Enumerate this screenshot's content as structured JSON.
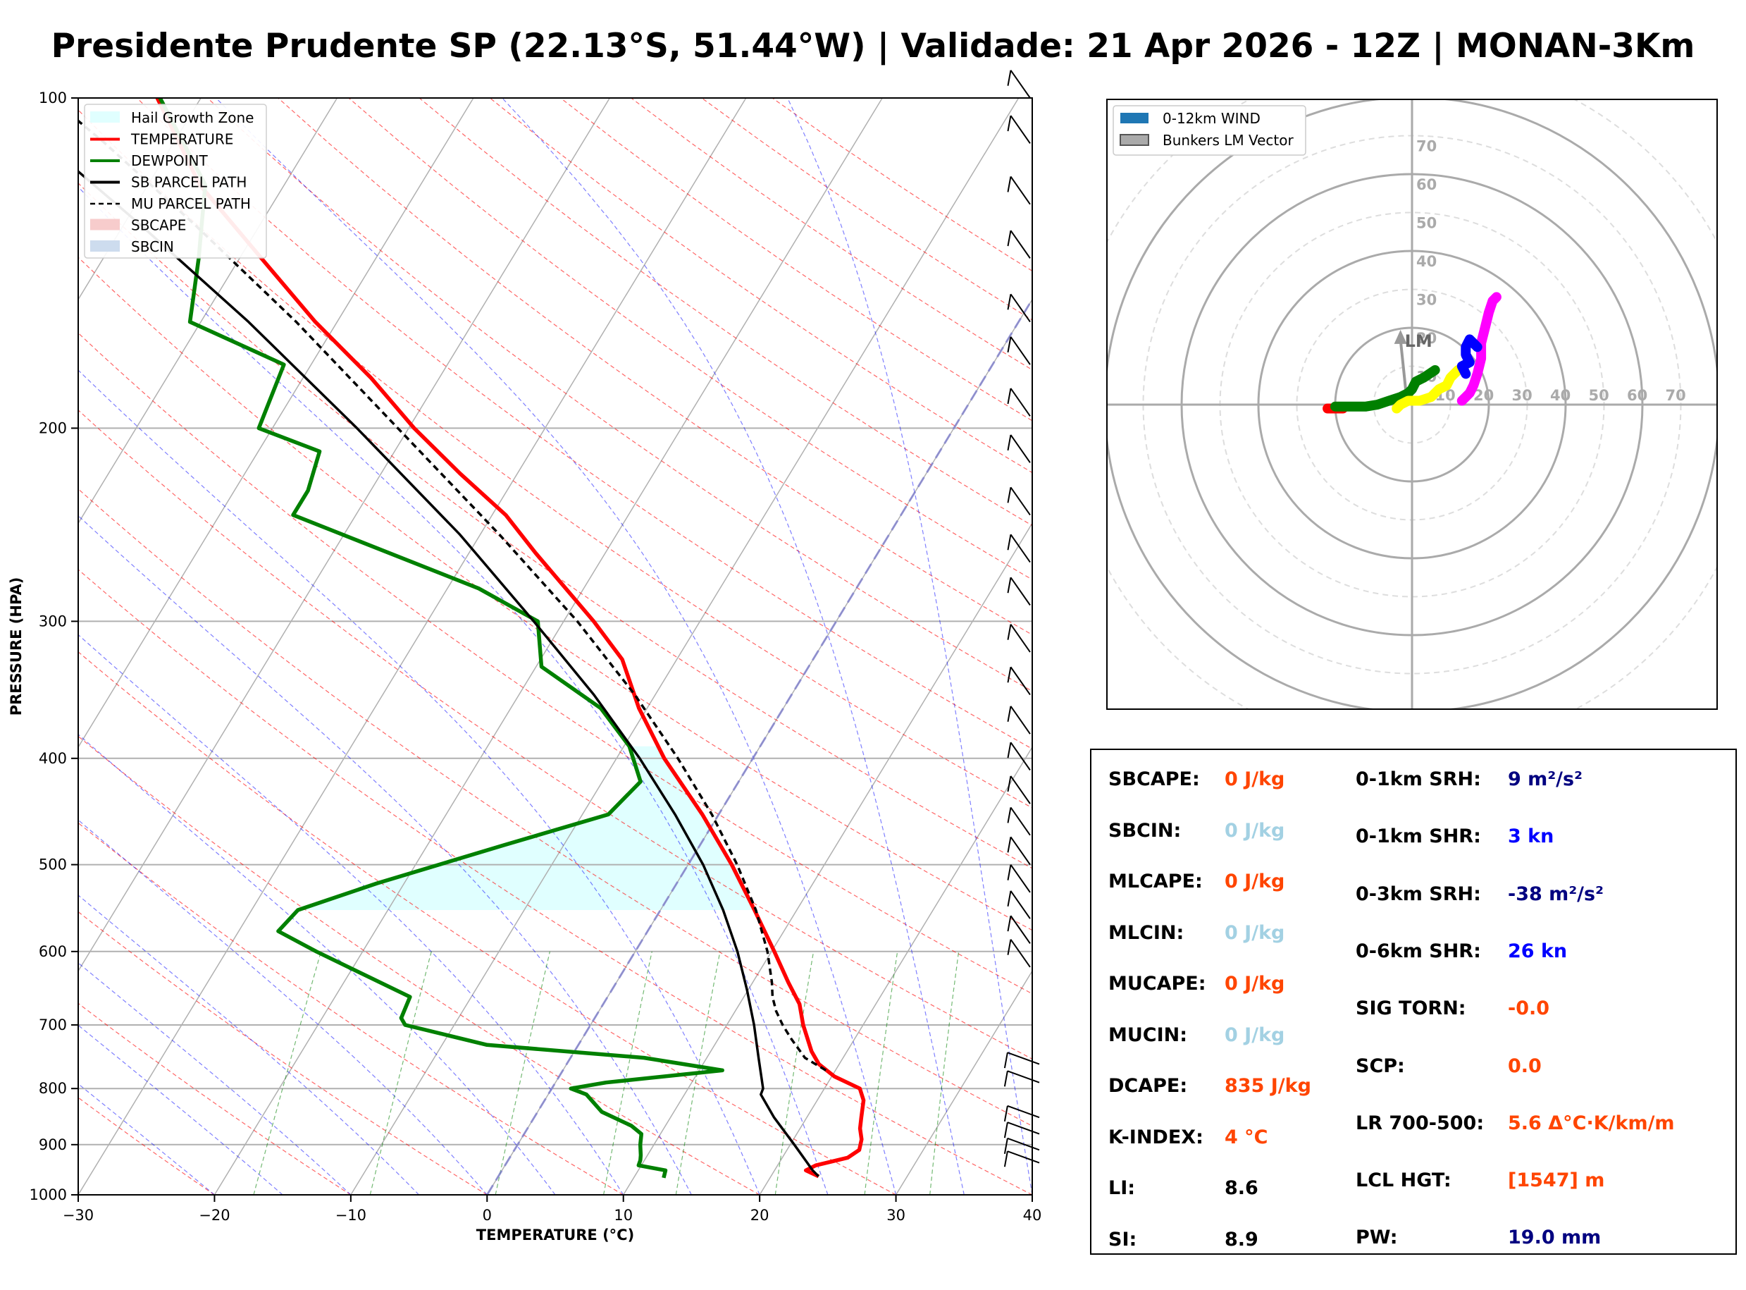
{
  "title": "Presidente Prudente SP (22.13°S, 51.44°W) | Validade: 21 Apr 2026 - 12Z | MONAN-3Km",
  "chart_data": [
    {
      "type": "line",
      "subtype": "skew-t log-p sounding",
      "xlabel": "TEMPERATURE (°C)",
      "ylabel": "PRESSURE (HPA)",
      "x_ticks": [
        -30,
        -20,
        -10,
        0,
        10,
        20,
        30,
        40
      ],
      "x_tick_labels": [
        "−30",
        "−20",
        "−10",
        "0",
        "10",
        "20",
        "30",
        "40"
      ],
      "y_ticks": [
        100,
        200,
        300,
        400,
        500,
        600,
        700,
        800,
        900,
        1000
      ],
      "xlim": [
        -30,
        40
      ],
      "ylim": [
        1000,
        100
      ],
      "y_scale": "log",
      "grid": true,
      "legend_position": "top-left",
      "legend": [
        {
          "label": "Hail Growth Zone",
          "style": "fill",
          "color": "#e0ffff"
        },
        {
          "label": "TEMPERATURE",
          "style": "line",
          "color": "#ff0000"
        },
        {
          "label": "DEWPOINT",
          "style": "line",
          "color": "#008000"
        },
        {
          "label": "SB PARCEL PATH",
          "style": "line",
          "color": "#000000"
        },
        {
          "label": "MU PARCEL PATH",
          "style": "dashed",
          "color": "#000000"
        },
        {
          "label": "SBCAPE",
          "style": "fill",
          "color": "#f7cccc"
        },
        {
          "label": "SBCIN",
          "style": "fill",
          "color": "#cddcee"
        }
      ],
      "hail_growth_zone": {
        "p_bottom": 550,
        "p_top": 390
      },
      "series": [
        {
          "name": "TEMPERATURE",
          "color": "#ff0000",
          "points": [
            [
              962,
              23.5
            ],
            [
              950,
              22.3
            ],
            [
              940,
              22.8
            ],
            [
              925,
              24.8
            ],
            [
              910,
              25.3
            ],
            [
              890,
              25.0
            ],
            [
              870,
              24.4
            ],
            [
              850,
              24.0
            ],
            [
              820,
              23.4
            ],
            [
              800,
              22.6
            ],
            [
              780,
              20.2
            ],
            [
              760,
              18.5
            ],
            [
              740,
              17.4
            ],
            [
              700,
              15.6
            ],
            [
              670,
              14.4
            ],
            [
              640,
              12.6
            ],
            [
              600,
              10.2
            ],
            [
              550,
              6.9
            ],
            [
              500,
              3.2
            ],
            [
              450,
              -1.2
            ],
            [
              400,
              -6.5
            ],
            [
              360,
              -10.6
            ],
            [
              325,
              -14.0
            ],
            [
              300,
              -17.8
            ],
            [
              260,
              -25.1
            ],
            [
              240,
              -29.0
            ],
            [
              220,
              -34.2
            ],
            [
              200,
              -39.6
            ],
            [
              180,
              -45.0
            ],
            [
              160,
              -51.6
            ],
            [
              140,
              -58.4
            ],
            [
              120,
              -66.2
            ],
            [
              100,
              -73.2
            ]
          ]
        },
        {
          "name": "DEWPOINT",
          "color": "#008000",
          "points": [
            [
              965,
              12.2
            ],
            [
              950,
              12.0
            ],
            [
              940,
              9.8
            ],
            [
              930,
              9.7
            ],
            [
              920,
              9.5
            ],
            [
              900,
              9.0
            ],
            [
              880,
              8.6
            ],
            [
              865,
              7.5
            ],
            [
              840,
              4.7
            ],
            [
              810,
              2.8
            ],
            [
              800,
              1.4
            ],
            [
              790,
              3.7
            ],
            [
              770,
              11.7
            ],
            [
              750,
              5.4
            ],
            [
              730,
              -6.7
            ],
            [
              700,
              -13.6
            ],
            [
              690,
              -14.2
            ],
            [
              660,
              -14.5
            ],
            [
              600,
              -23.4
            ],
            [
              575,
              -27.1
            ],
            [
              550,
              -26.6
            ],
            [
              520,
              -22.0
            ],
            [
              480,
              -14.4
            ],
            [
              450,
              -8.1
            ],
            [
              420,
              -7.2
            ],
            [
              390,
              -9.6
            ],
            [
              360,
              -13.4
            ],
            [
              330,
              -19.6
            ],
            [
              300,
              -21.9
            ],
            [
              280,
              -27.7
            ],
            [
              240,
              -44.6
            ],
            [
              228,
              -44.6
            ],
            [
              210,
              -45.5
            ],
            [
              200,
              -51.0
            ],
            [
              175,
              -52.0
            ],
            [
              160,
              -60.8
            ],
            [
              140,
              -63.0
            ],
            [
              120,
              -65.8
            ],
            [
              100,
              -73.0
            ]
          ]
        },
        {
          "name": "SB PARCEL PATH",
          "color": "#000000",
          "points": [
            [
              962,
              23.5
            ],
            [
              950,
              22.8
            ],
            [
              900,
              20.3
            ],
            [
              850,
              17.6
            ],
            [
              810,
              15.6
            ],
            [
              800,
              15.5
            ],
            [
              750,
              13.8
            ],
            [
              700,
              12.0
            ],
            [
              650,
              9.9
            ],
            [
              600,
              7.5
            ],
            [
              550,
              4.6
            ],
            [
              500,
              1.1
            ],
            [
              450,
              -3.2
            ],
            [
              400,
              -8.3
            ],
            [
              350,
              -14.5
            ],
            [
              300,
              -22.2
            ],
            [
              250,
              -31.5
            ],
            [
              200,
              -43.8
            ],
            [
              160,
              -56.5
            ],
            [
              130,
              -69.0
            ],
            [
              100,
              -85.3
            ]
          ]
        },
        {
          "name": "MU PARCEL PATH",
          "color": "#000000",
          "dash": true,
          "points": [
            [
              770,
              19.3
            ],
            [
              750,
              17.2
            ],
            [
              720,
              15.3
            ],
            [
              700,
              14.1
            ],
            [
              680,
              13.0
            ],
            [
              660,
              12.1
            ],
            [
              640,
              11.4
            ],
            [
              600,
              9.7
            ],
            [
              550,
              7.0
            ],
            [
              500,
              3.6
            ],
            [
              450,
              -0.5
            ],
            [
              400,
              -5.5
            ],
            [
              350,
              -11.5
            ],
            [
              300,
              -19.0
            ],
            [
              250,
              -28.6
            ],
            [
              200,
              -40.8
            ],
            [
              160,
              -53.0
            ],
            [
              130,
              -65.0
            ],
            [
              110,
              -75.0
            ],
            [
              100,
              -81.0
            ]
          ]
        }
      ]
    },
    {
      "type": "line",
      "subtype": "hodograph",
      "legend": [
        {
          "label": "0-12km WIND",
          "color": "#1f77b4"
        },
        {
          "label": "Bunkers LM Vector",
          "color": "#aaaaaa"
        }
      ],
      "legend_position": "top-left",
      "ring_labels": [
        "10",
        "20",
        "30",
        "40",
        "50",
        "60",
        "70"
      ],
      "ring_values": [
        10,
        20,
        30,
        40,
        50,
        60,
        70
      ],
      "lm_label": "LM",
      "lm_vector": {
        "u": -3,
        "v": 18
      },
      "series": [
        {
          "name": "segment-1",
          "color": "#ff0000",
          "points": [
            [
              -22,
              -1
            ],
            [
              -20,
              -1
            ],
            [
              -18,
              -1
            ]
          ]
        },
        {
          "name": "segment-2",
          "color": "#008000",
          "points": [
            [
              -20,
              -0.5
            ],
            [
              -15,
              -0.5
            ],
            [
              -12,
              -0.5
            ],
            [
              -9,
              0
            ],
            [
              -6,
              1
            ],
            [
              -3,
              2
            ],
            [
              -1,
              3
            ],
            [
              0,
              4
            ],
            [
              1,
              6
            ],
            [
              3,
              7
            ],
            [
              6,
              9
            ]
          ]
        },
        {
          "name": "segment-3",
          "color": "#ffff00",
          "points": [
            [
              -4,
              -1
            ],
            [
              -3,
              0
            ],
            [
              -1,
              1
            ],
            [
              2,
              1
            ],
            [
              5,
              2
            ],
            [
              7,
              4
            ],
            [
              9,
              5
            ],
            [
              10,
              7
            ],
            [
              11,
              8
            ],
            [
              12,
              9
            ]
          ]
        },
        {
          "name": "segment-4",
          "color": "#ff00ff",
          "points": [
            [
              13,
              1
            ],
            [
              14,
              2
            ],
            [
              15,
              3
            ],
            [
              16,
              5
            ],
            [
              17,
              8
            ],
            [
              18,
              12
            ],
            [
              18,
              16
            ],
            [
              19,
              20
            ],
            [
              20,
              24
            ],
            [
              21,
              27
            ],
            [
              22,
              28
            ]
          ]
        },
        {
          "name": "segment-5",
          "color": "#0000ff",
          "points": [
            [
              14,
              8
            ],
            [
              13,
              10
            ],
            [
              15,
              11
            ],
            [
              14,
              13
            ],
            [
              14,
              15
            ],
            [
              15,
              17
            ],
            [
              16,
              16
            ],
            [
              17,
              15
            ]
          ]
        }
      ]
    }
  ],
  "stats": {
    "left": [
      {
        "label": "SBCAPE:",
        "value": "0 J/kg",
        "color": "#ff4500"
      },
      {
        "label": "SBCIN:",
        "value": "0 J/kg",
        "color": "#a3d1e3"
      },
      {
        "label": "MLCAPE:",
        "value": "0 J/kg",
        "color": "#ff4500"
      },
      {
        "label": "MLCIN:",
        "value": "0 J/kg",
        "color": "#a3d1e3"
      },
      {
        "label": "MUCAPE:",
        "value": "0 J/kg",
        "color": "#ff4500"
      },
      {
        "label": "MUCIN:",
        "value": "0 J/kg",
        "color": "#a3d1e3"
      },
      {
        "label": "DCAPE:",
        "value": "835 J/kg",
        "color": "#ff4500"
      },
      {
        "label": "K-INDEX:",
        "value": "4 °C",
        "color": "#ff4500"
      },
      {
        "label": "LI:",
        "value": "8.6",
        "color": "#000000"
      },
      {
        "label": "SI:",
        "value": "8.9",
        "color": "#000000"
      }
    ],
    "right": [
      {
        "label": "0-1km SRH:",
        "value": "9 m²/s²",
        "color": "#000080"
      },
      {
        "label": "0-1km SHR:",
        "value": "3 kn",
        "color": "#0000ff"
      },
      {
        "label": "0-3km SRH:",
        "value": "-38 m²/s²",
        "color": "#000080"
      },
      {
        "label": "0-6km SHR:",
        "value": "26 kn",
        "color": "#0000ff"
      },
      {
        "label": "SIG TORN:",
        "value": "-0.0",
        "color": "#ff4500"
      },
      {
        "label": "SCP:",
        "value": "0.0",
        "color": "#ff4500"
      },
      {
        "label": "LR 700-500:",
        "value": "5.6 Δ°C·K/km/m",
        "color": "#ff4500"
      },
      {
        "label": "LCL HGT:",
        "value": "[1547] m",
        "color": "#ff4500"
      },
      {
        "label": "PW:",
        "value": "19.0 mm",
        "color": "#000080"
      }
    ]
  }
}
